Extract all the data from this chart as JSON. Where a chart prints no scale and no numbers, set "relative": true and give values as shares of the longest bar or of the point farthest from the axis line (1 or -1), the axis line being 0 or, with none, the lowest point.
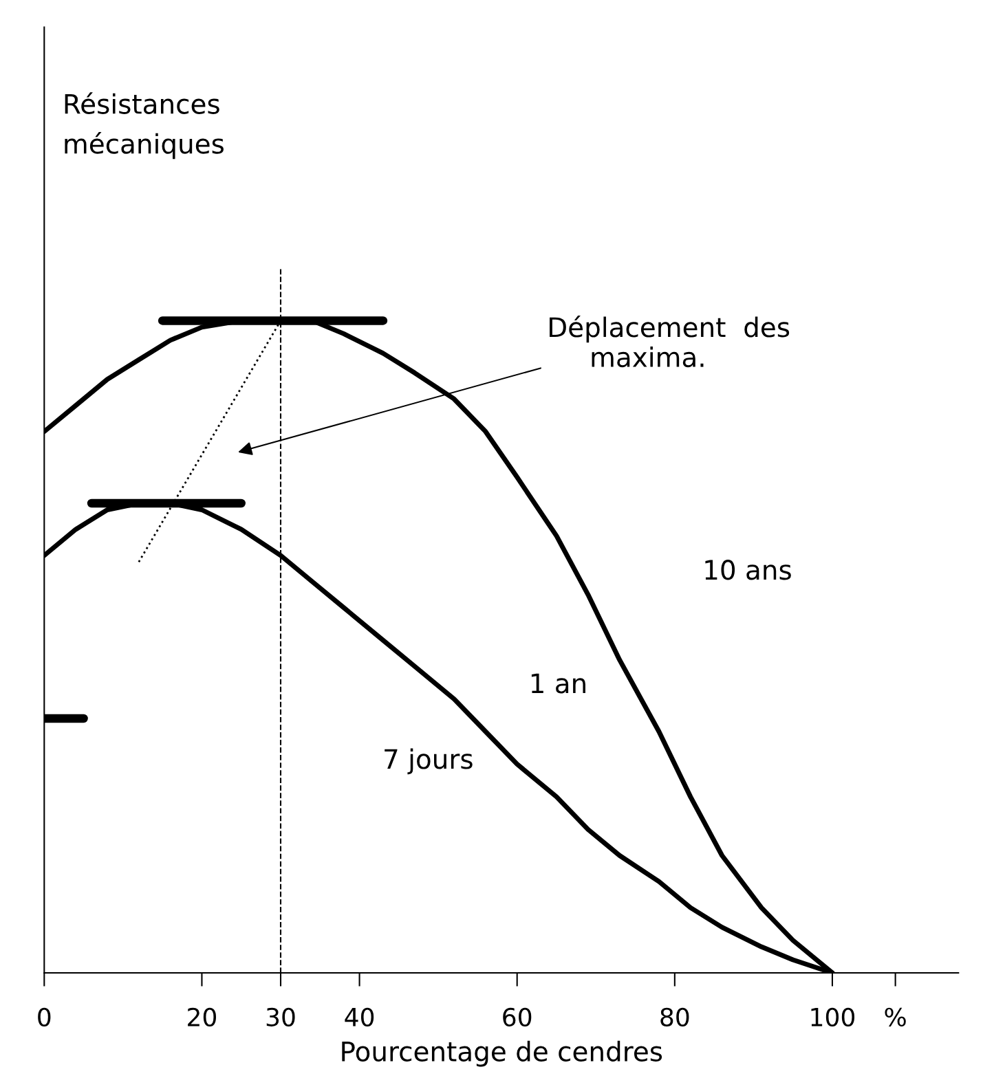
{
  "chart_data": {
    "type": "line",
    "relative": true,
    "xlabel": "Pourcentage de cendres",
    "xlim": [
      0,
      116
    ],
    "xticks": [
      0,
      20,
      30,
      40,
      60,
      80,
      100,
      {
        "value": 108,
        "label": "%"
      }
    ],
    "grid": false,
    "marker": "none",
    "line_style": "solid",
    "series": [
      {
        "x": [
          0,
          4,
          8,
          12,
          16,
          20,
          25,
          30,
          34,
          38,
          43,
          47,
          52,
          56,
          60,
          65,
          69,
          73,
          78,
          82,
          86,
          91,
          95,
          100
        ],
        "values": [
          0.83,
          0.87,
          0.91,
          0.94,
          0.97,
          0.99,
          1.0,
          1.0,
          1.0,
          0.98,
          0.95,
          0.92,
          0.88,
          0.83,
          0.76,
          0.67,
          0.58,
          0.48,
          0.37,
          0.27,
          0.18,
          0.1,
          0.05,
          0
        ],
        "color": "#000000"
      },
      {
        "x": [
          0,
          4,
          8,
          12,
          16,
          20,
          25,
          30,
          34,
          38,
          43,
          47,
          52,
          56,
          60,
          65,
          69,
          73,
          78,
          82,
          86,
          91,
          95,
          100
        ],
        "values": [
          0.64,
          0.68,
          0.71,
          0.72,
          0.72,
          0.71,
          0.68,
          0.64,
          0.6,
          0.56,
          0.51,
          0.47,
          0.42,
          0.37,
          0.32,
          0.27,
          0.22,
          0.18,
          0.14,
          0.1,
          0.07,
          0.04,
          0.02,
          0
        ],
        "color": "#000000"
      },
      {
        "x": [
          15,
          43
        ],
        "values": [
          1.0,
          1.0
        ],
        "color": "#000000"
      },
      {
        "x": [
          6,
          25
        ],
        "values": [
          0.72,
          0.72
        ],
        "color": "#000000"
      },
      {
        "x": [
          0,
          5
        ],
        "values": [
          0.39,
          0.39
        ],
        "color": "#000000"
      },
      {
        "x": [
          12,
          30
        ],
        "values": [
          0.63,
          1.0
        ],
        "color": "#000000",
        "line_style": "dotted"
      }
    ],
    "ref_lines": [
      {
        "axis": "x",
        "value": 30,
        "line_style": "dashed",
        "color": "#000000"
      }
    ],
    "annotations": [
      "Résistances mécaniques",
      "Déplacement des maxima.",
      "10 ans",
      "1 an",
      "7 jours"
    ]
  }
}
